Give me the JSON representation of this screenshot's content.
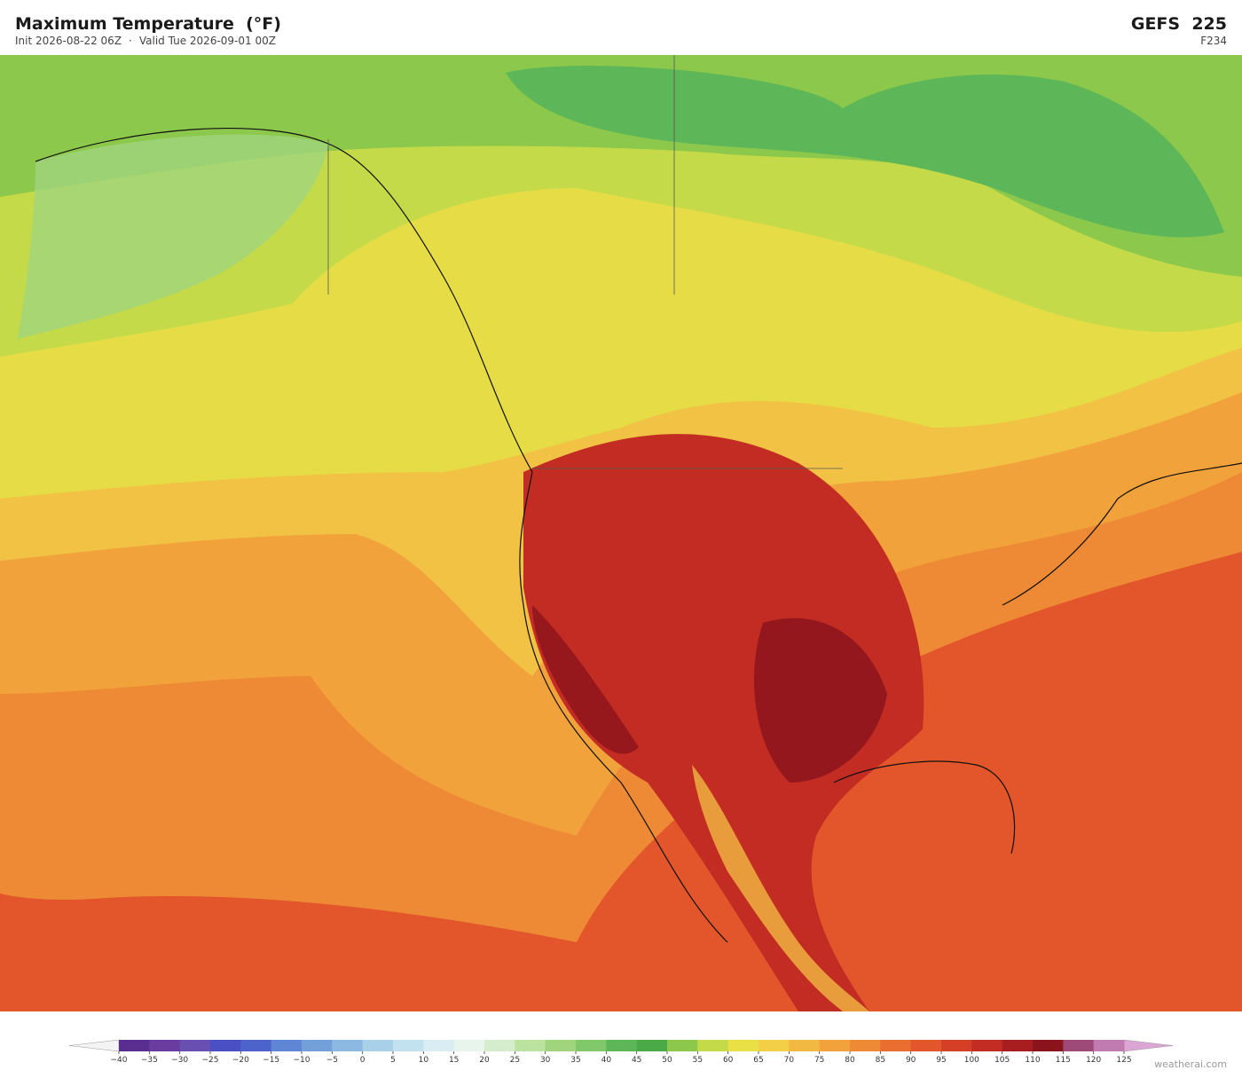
{
  "header": {
    "title": "Maximum Temperature  (°F)",
    "init": "Init 2026-08-22 06Z",
    "separator": "·",
    "valid": "Valid Tue 2026-09-01 00Z",
    "model": "GEFS  225",
    "forecast_hour": "F234"
  },
  "colorbar": {
    "ticks": [
      {
        "value": -40,
        "label": "−40"
      },
      {
        "value": -35,
        "label": "−35"
      },
      {
        "value": -30,
        "label": "−30"
      },
      {
        "value": -25,
        "label": "−25"
      },
      {
        "value": -20,
        "label": "−20"
      },
      {
        "value": -15,
        "label": "−15"
      },
      {
        "value": -10,
        "label": "−10"
      },
      {
        "value": -5,
        "label": "−5"
      },
      0,
      5,
      10,
      15,
      20,
      25,
      30,
      35,
      40,
      45,
      50,
      55,
      60,
      65,
      70,
      75,
      80,
      85,
      90,
      95,
      100,
      105,
      110,
      115,
      120,
      125
    ],
    "colors": [
      "#5a2d91",
      "#6b3c9f",
      "#6a4fb3",
      "#4b4fc4",
      "#4d63cc",
      "#5f86d5",
      "#74a0da",
      "#8cb9e1",
      "#a8d0e9",
      "#c3e2ef",
      "#daedf2",
      "#e8f5ec",
      "#d5edcc",
      "#bce29f",
      "#a0d57e",
      "#80c86a",
      "#5db658",
      "#4aaa48",
      "#8cc84b",
      "#c4da48",
      "#e8e045",
      "#f2cf47",
      "#f2b942",
      "#f1a23b",
      "#ee8a35",
      "#e96e2f",
      "#e3552a",
      "#d43f26",
      "#c22c22",
      "#a81e20",
      "#8b141c",
      "#9d4a79",
      "#c07cb0"
    ],
    "under_color": "#f4f4f4",
    "over_color": "#dba6d4"
  },
  "watermark": "weatherai.com"
}
